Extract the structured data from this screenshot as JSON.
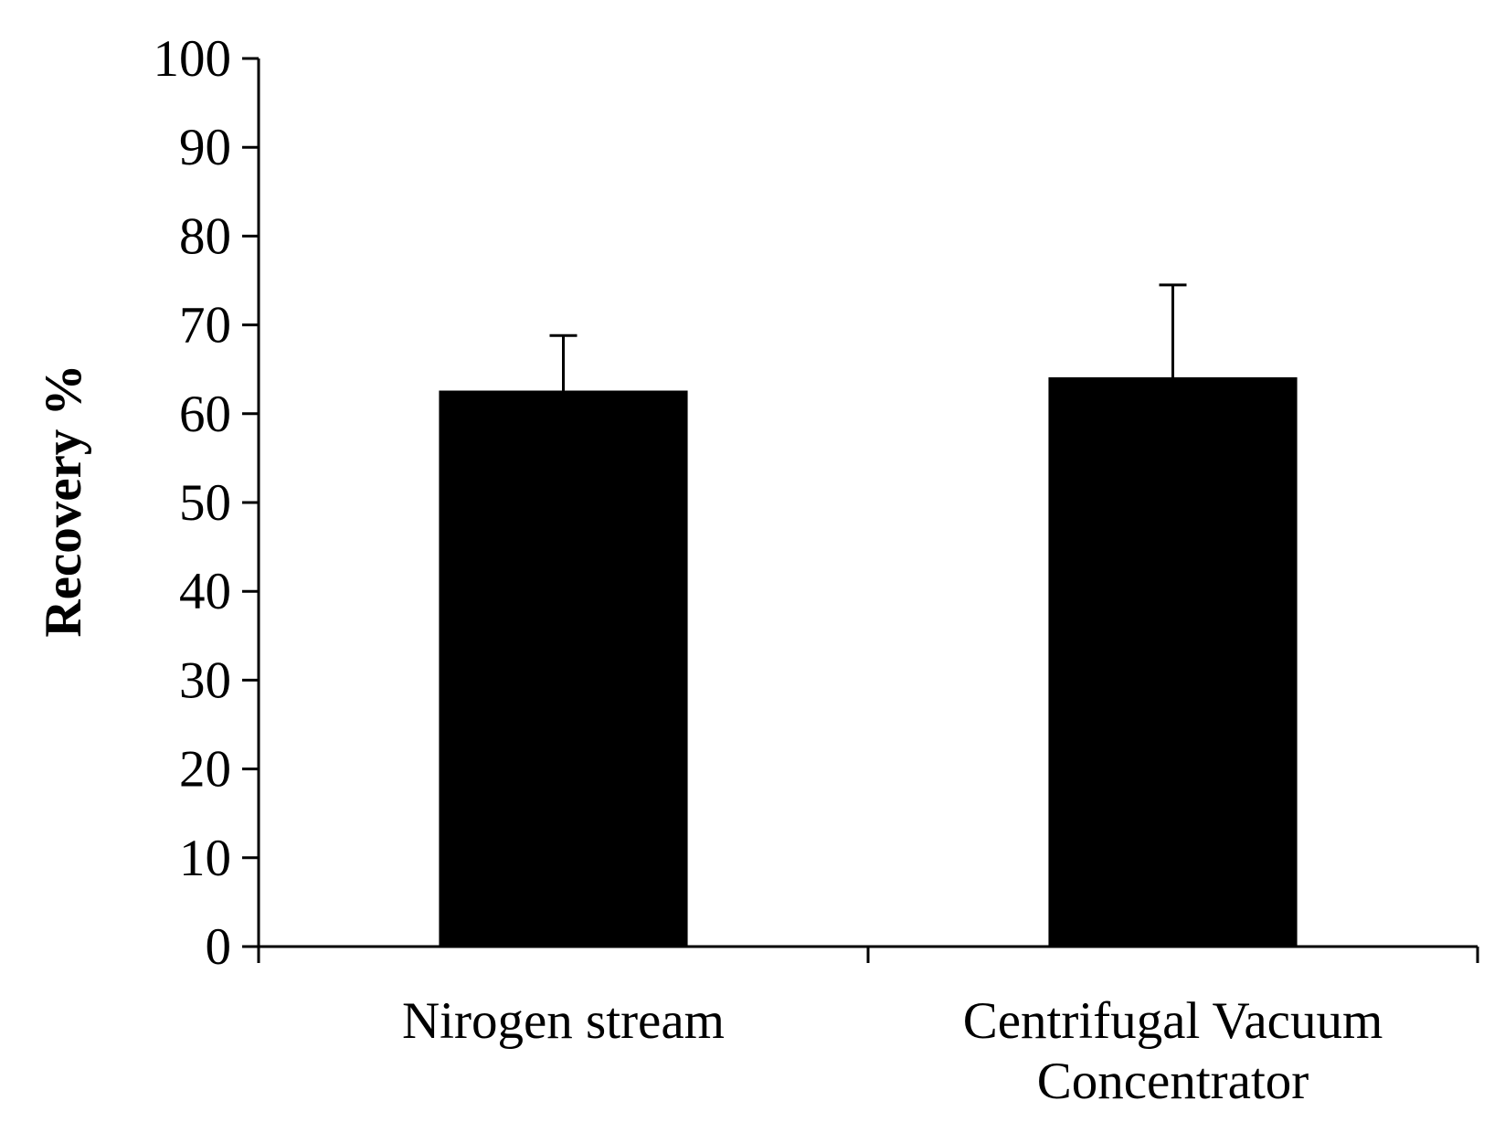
{
  "chart_data": {
    "type": "bar",
    "title": "",
    "xlabel": "",
    "ylabel": "Recovery %",
    "categories": [
      [
        "Nirogen stream"
      ],
      [
        "Centrifugal Vacuum",
        "Concentrator"
      ]
    ],
    "values": [
      62.5,
      64.0
    ],
    "error_plus": [
      6.3,
      10.5
    ],
    "ylim": [
      0,
      100
    ],
    "yticks": [
      0,
      10,
      20,
      30,
      40,
      50,
      60,
      70,
      80,
      90,
      100
    ],
    "bar_color": "#000000",
    "grid": false,
    "legend": "none"
  }
}
